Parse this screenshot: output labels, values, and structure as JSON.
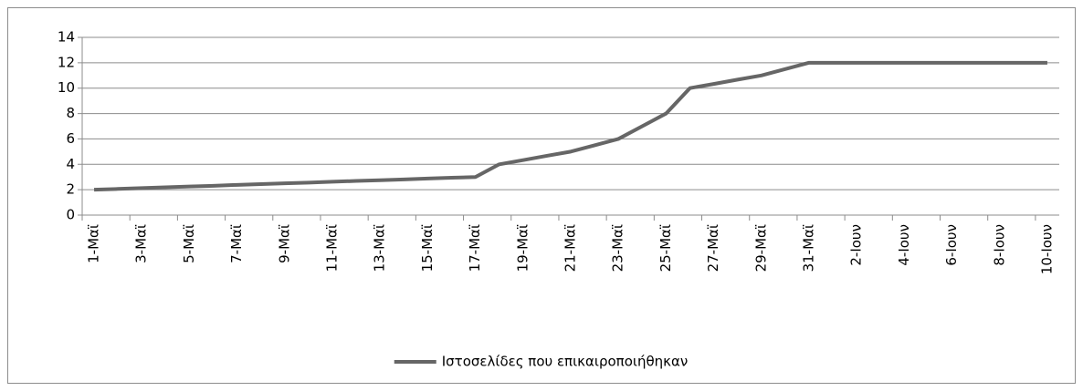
{
  "chart_data": {
    "type": "line",
    "categories": [
      "1-Μαϊ",
      null,
      "3-Μαϊ",
      null,
      "5-Μαϊ",
      null,
      "7-Μαϊ",
      null,
      "9-Μαϊ",
      null,
      "11-Μαϊ",
      null,
      "13-Μαϊ",
      null,
      "15-Μαϊ",
      null,
      "17-Μαϊ",
      null,
      "19-Μαϊ",
      null,
      "21-Μαϊ",
      null,
      "23-Μαϊ",
      null,
      "25-Μαϊ",
      null,
      "27-Μαϊ",
      null,
      "29-Μαϊ",
      null,
      "31-Μαϊ",
      null,
      "2-Ιουν",
      null,
      "4-Ιουν",
      null,
      "6-Ιουν",
      null,
      "8-Ιουν",
      null,
      "10-Ιουν"
    ],
    "series": [
      {
        "name": "Ιστοσελίδες που επικαιροποιήθηκαν",
        "color": "#666666",
        "values": [
          2,
          2.06,
          2.13,
          2.19,
          2.25,
          2.31,
          2.38,
          2.44,
          2.5,
          2.56,
          2.63,
          2.69,
          2.75,
          2.81,
          2.88,
          2.94,
          3,
          4,
          4.33,
          4.67,
          5,
          5.5,
          6,
          7,
          8,
          10,
          10.33,
          10.67,
          11,
          11.5,
          12,
          12,
          12,
          12,
          12,
          12,
          12,
          12,
          12,
          12,
          12
        ]
      }
    ],
    "ylim": [
      0,
      14
    ],
    "yticks": [
      0,
      2,
      4,
      6,
      8,
      10,
      12,
      14
    ],
    "grid": true,
    "legend": "bottom"
  }
}
